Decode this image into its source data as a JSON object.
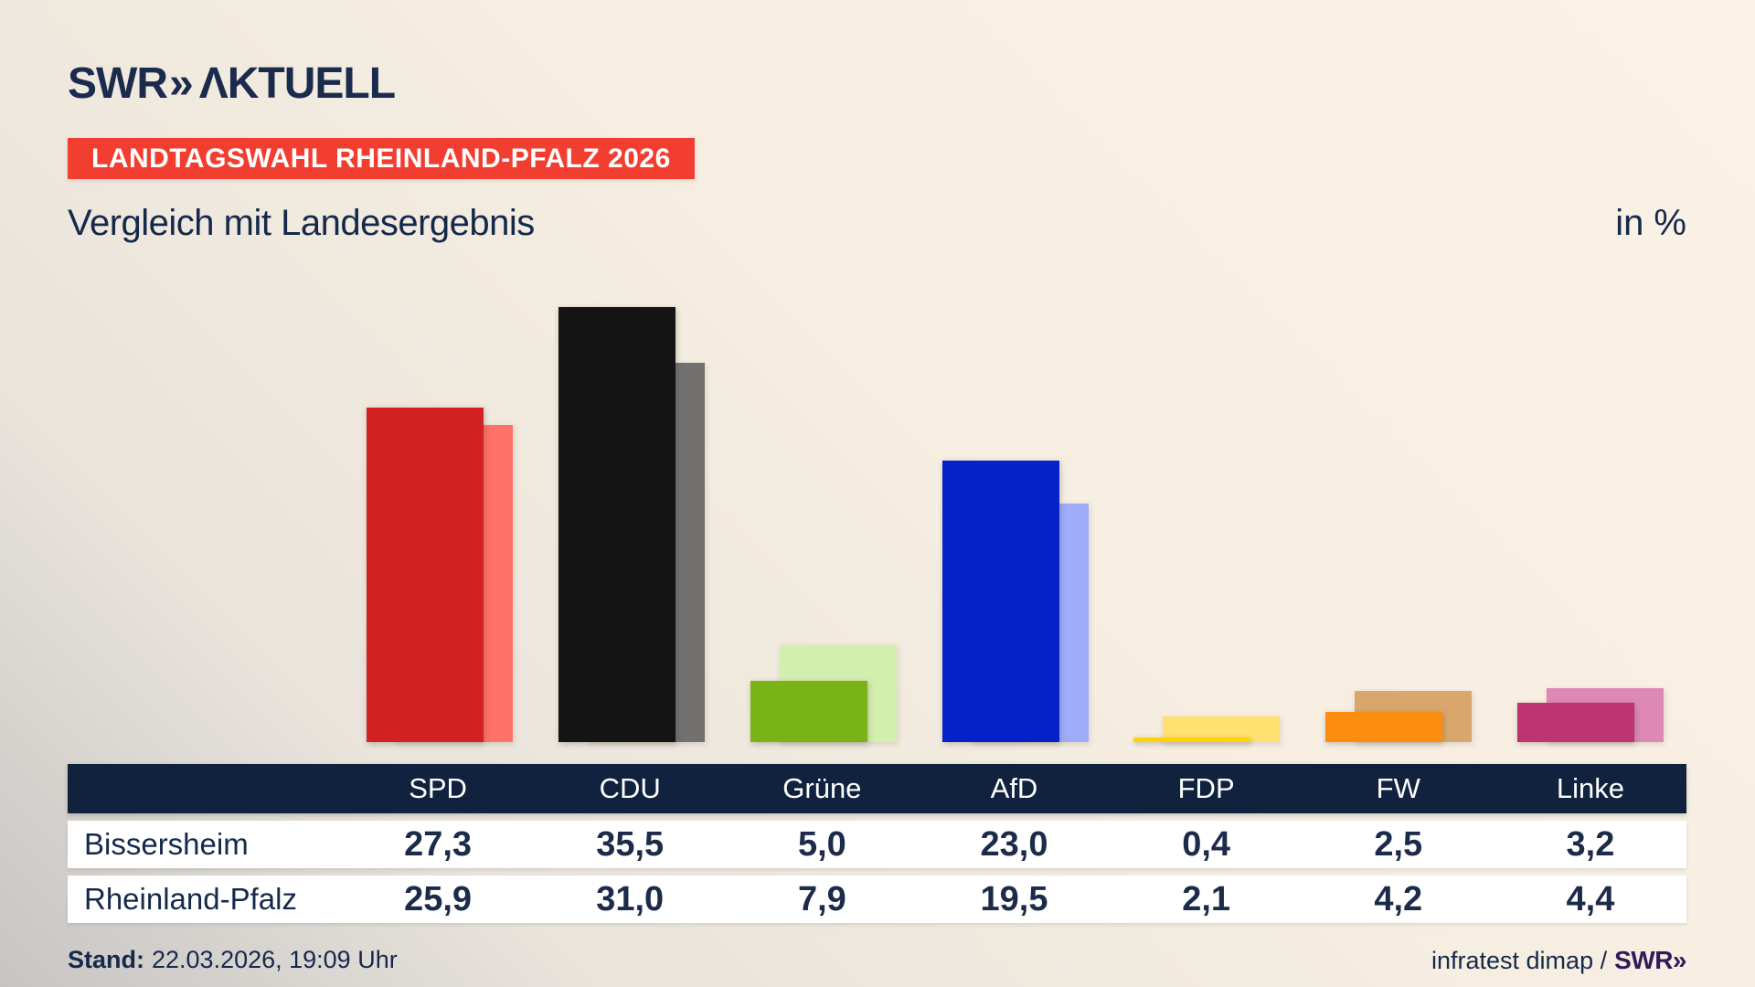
{
  "header": {
    "logo_swr": "SWR",
    "logo_chevrons": "»",
    "logo_aktuell": "ΛKTUELL",
    "banner": "LANDTAGSWAHL RHEINLAND-PFALZ 2026",
    "subtitle": "Vergleich mit Landesergebnis",
    "unit": "in %"
  },
  "chart_data": {
    "type": "bar",
    "title": "Vergleich mit Landesergebnis",
    "unit": "%",
    "categories": [
      "SPD",
      "CDU",
      "Grüne",
      "AfD",
      "FDP",
      "FW",
      "Linke"
    ],
    "series": [
      {
        "name": "Bissersheim",
        "values": [
          27.3,
          35.5,
          5.0,
          23.0,
          0.4,
          2.5,
          3.2
        ]
      },
      {
        "name": "Rheinland-Pfalz",
        "values": [
          25.9,
          31.0,
          7.9,
          19.5,
          2.1,
          4.2,
          4.4
        ]
      }
    ],
    "bar_colors_bissersheim": [
      "#d32020",
      "#141414",
      "#7ab315",
      "#0521c9",
      "#ffd404",
      "#fc8d0e",
      "#bc3471"
    ],
    "bar_colors_rheinland_pfalz": [
      "#ff7169",
      "#727170",
      "#d3efae",
      "#9dadfb",
      "#ffe070",
      "#d9a76c",
      "#de89b5"
    ],
    "ylim": [
      0,
      40
    ],
    "grid": false,
    "legend_position": "table-below",
    "note": "front saturated bar = Bissersheim, offset lighter bar = Rheinland-Pfalz Landesergebnis"
  },
  "table": {
    "header": [
      "SPD",
      "CDU",
      "Grüne",
      "AfD",
      "FDP",
      "FW",
      "Linke"
    ],
    "rows": [
      {
        "label": "Bissersheim",
        "values": [
          "27,3",
          "35,5",
          "5,0",
          "23,0",
          "0,4",
          "2,5",
          "3,2"
        ]
      },
      {
        "label": "Rheinland-Pfalz",
        "values": [
          "25,9",
          "31,0",
          "7,9",
          "19,5",
          "2,1",
          "4,2",
          "4,4"
        ]
      }
    ]
  },
  "footer": {
    "stand_label": "Stand:",
    "stand_value": "22.03.2026, 19:09 Uhr",
    "source_text": "infratest dimap /",
    "source_logo": "SWR»"
  },
  "colors": {
    "navy_text": "#15294b",
    "table_header_bg": "#11223e",
    "banner_bg": "#f23e31",
    "banner_text": "#ffffff",
    "footer_logo_purple": "#31195a",
    "background_cream": "#f9f1e4",
    "background_gray": "#c7c4c3"
  }
}
